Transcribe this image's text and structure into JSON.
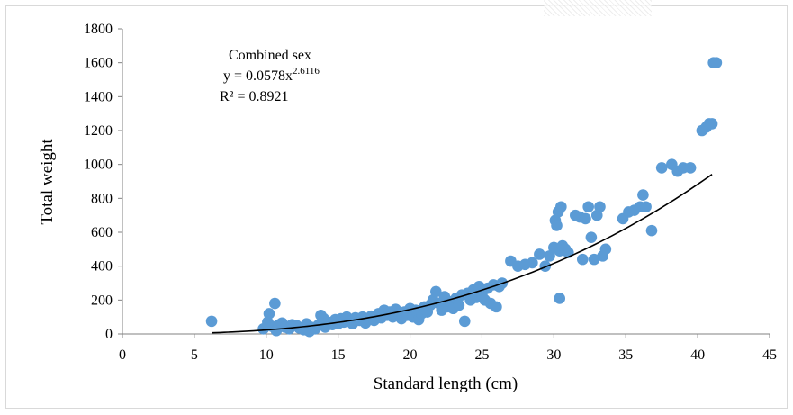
{
  "chart_data": {
    "type": "scatter",
    "title": "",
    "xlabel": "Standard length (cm)",
    "ylabel": "Total weight",
    "xlim": [
      0,
      45
    ],
    "ylim": [
      0,
      1800
    ],
    "x_ticks": [
      0,
      5,
      10,
      15,
      20,
      25,
      30,
      35,
      40,
      45
    ],
    "y_ticks": [
      0,
      200,
      400,
      600,
      800,
      1000,
      1200,
      1400,
      1600,
      1800
    ],
    "grid": false,
    "legend": "none",
    "annotation": {
      "line1": "Combined sex",
      "line2_prefix": "y = 0.0578x",
      "line2_exponent": "2.6116",
      "line3": "R² = 0.8921"
    },
    "colors": {
      "points": "#5b9bd5",
      "trendline": "#000000",
      "axis": "#808080"
    },
    "trendline": {
      "type": "power",
      "a": 0.0578,
      "b": 2.6116,
      "x_range": [
        6.2,
        41
      ]
    },
    "series": [
      {
        "points": [
          [
            6.2,
            75
          ],
          [
            9.8,
            30
          ],
          [
            10.1,
            70
          ],
          [
            10.2,
            120
          ],
          [
            10.4,
            45
          ],
          [
            10.6,
            180
          ],
          [
            10.7,
            20
          ],
          [
            10.9,
            55
          ],
          [
            11.1,
            65
          ],
          [
            11.3,
            40
          ],
          [
            11.6,
            30
          ],
          [
            11.8,
            55
          ],
          [
            12.1,
            50
          ],
          [
            12.3,
            35
          ],
          [
            12.6,
            25
          ],
          [
            12.8,
            60
          ],
          [
            13.0,
            15
          ],
          [
            13.1,
            40
          ],
          [
            13.4,
            30
          ],
          [
            13.6,
            50
          ],
          [
            13.8,
            110
          ],
          [
            14.0,
            90
          ],
          [
            14.1,
            40
          ],
          [
            14.3,
            70
          ],
          [
            14.6,
            55
          ],
          [
            14.8,
            85
          ],
          [
            15.0,
            60
          ],
          [
            15.2,
            90
          ],
          [
            15.4,
            70
          ],
          [
            15.6,
            100
          ],
          [
            15.8,
            75
          ],
          [
            16.0,
            60
          ],
          [
            16.2,
            95
          ],
          [
            16.5,
            80
          ],
          [
            16.7,
            100
          ],
          [
            16.9,
            65
          ],
          [
            17.1,
            90
          ],
          [
            17.3,
            105
          ],
          [
            17.5,
            80
          ],
          [
            17.8,
            120
          ],
          [
            18.0,
            95
          ],
          [
            18.2,
            140
          ],
          [
            18.4,
            110
          ],
          [
            18.6,
            130
          ],
          [
            18.8,
            100
          ],
          [
            19.0,
            145
          ],
          [
            19.2,
            120
          ],
          [
            19.4,
            90
          ],
          [
            19.6,
            130
          ],
          [
            19.8,
            110
          ],
          [
            20.0,
            150
          ],
          [
            20.2,
            100
          ],
          [
            20.4,
            140
          ],
          [
            20.6,
            85
          ],
          [
            20.8,
            120
          ],
          [
            21.0,
            160
          ],
          [
            21.2,
            130
          ],
          [
            21.4,
            170
          ],
          [
            21.6,
            200
          ],
          [
            21.8,
            250
          ],
          [
            22.0,
            180
          ],
          [
            22.2,
            140
          ],
          [
            22.4,
            220
          ],
          [
            22.6,
            160
          ],
          [
            22.8,
            190
          ],
          [
            23.0,
            150
          ],
          [
            23.2,
            210
          ],
          [
            23.4,
            170
          ],
          [
            23.6,
            230
          ],
          [
            23.8,
            75
          ],
          [
            24.0,
            240
          ],
          [
            24.2,
            200
          ],
          [
            24.4,
            260
          ],
          [
            24.6,
            215
          ],
          [
            24.8,
            280
          ],
          [
            25.0,
            230
          ],
          [
            25.2,
            200
          ],
          [
            25.4,
            270
          ],
          [
            25.6,
            180
          ],
          [
            25.8,
            290
          ],
          [
            26.0,
            160
          ],
          [
            26.2,
            280
          ],
          [
            26.4,
            300
          ],
          [
            27.0,
            430
          ],
          [
            27.5,
            400
          ],
          [
            28.0,
            410
          ],
          [
            28.5,
            420
          ],
          [
            29.0,
            470
          ],
          [
            29.4,
            400
          ],
          [
            29.7,
            460
          ],
          [
            30.0,
            510
          ],
          [
            30.1,
            670
          ],
          [
            30.2,
            640
          ],
          [
            30.3,
            720
          ],
          [
            30.4,
            490
          ],
          [
            30.5,
            750
          ],
          [
            30.6,
            520
          ],
          [
            30.8,
            500
          ],
          [
            30.4,
            210
          ],
          [
            31.0,
            480
          ],
          [
            31.5,
            700
          ],
          [
            31.8,
            690
          ],
          [
            32.0,
            440
          ],
          [
            32.2,
            680
          ],
          [
            32.4,
            750
          ],
          [
            32.6,
            570
          ],
          [
            32.8,
            440
          ],
          [
            33.0,
            700
          ],
          [
            33.2,
            750
          ],
          [
            33.4,
            460
          ],
          [
            33.6,
            500
          ],
          [
            34.8,
            680
          ],
          [
            35.2,
            720
          ],
          [
            35.6,
            730
          ],
          [
            36.0,
            750
          ],
          [
            36.2,
            820
          ],
          [
            36.4,
            750
          ],
          [
            36.8,
            610
          ],
          [
            37.5,
            980
          ],
          [
            38.2,
            1000
          ],
          [
            38.6,
            960
          ],
          [
            39.0,
            980
          ],
          [
            39.5,
            980
          ],
          [
            40.3,
            1200
          ],
          [
            40.6,
            1220
          ],
          [
            40.8,
            1240
          ],
          [
            41.0,
            1240
          ],
          [
            41.1,
            1600
          ],
          [
            41.3,
            1600
          ]
        ]
      }
    ]
  }
}
